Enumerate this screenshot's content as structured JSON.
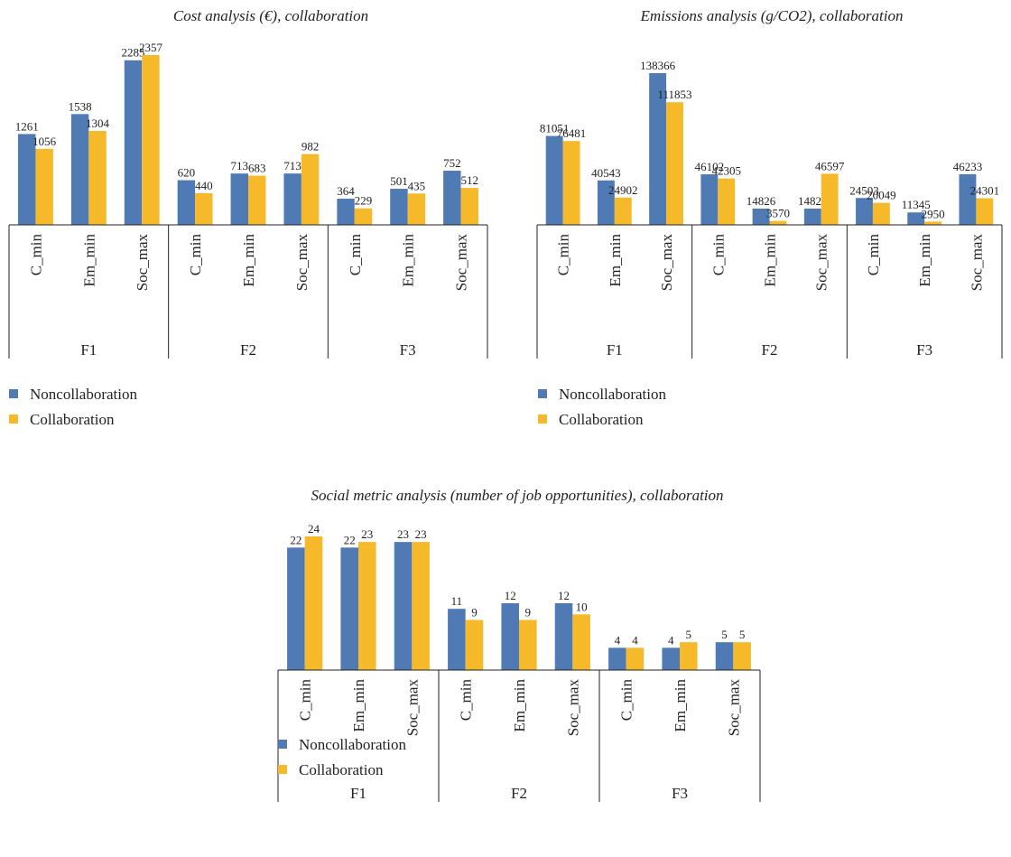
{
  "colors": {
    "noncollaboration": "#4f7ab4",
    "collaboration": "#f5b92a",
    "axis": "#222222"
  },
  "legend": {
    "noncollaboration": "Noncollaboration",
    "collaboration": "Collaboration"
  },
  "chart_data": [
    {
      "type": "bar",
      "title": "Cost analysis (€), collaboration",
      "groups": [
        "F1",
        "F2",
        "F3"
      ],
      "categories": [
        "C_min",
        "Em_min",
        "Soc_max",
        "C_min",
        "Em_min",
        "Soc_max",
        "C_min",
        "Em_min",
        "Soc_max"
      ],
      "series": [
        {
          "name": "Noncollaboration",
          "values": [
            1261,
            1538,
            2285,
            620,
            713,
            713,
            364,
            501,
            752
          ]
        },
        {
          "name": "Collaboration",
          "values": [
            1056,
            1304,
            2357,
            440,
            683,
            982,
            229,
            435,
            512
          ]
        }
      ],
      "ylim": [
        0,
        2357
      ],
      "grid": false,
      "legend_position": "bottom-left"
    },
    {
      "type": "bar",
      "title": "Emissions analysis (g/CO2), collaboration",
      "groups": [
        "F1",
        "F2",
        "F3"
      ],
      "categories": [
        "C_min",
        "Em_min",
        "Soc_max",
        "C_min",
        "Em_min",
        "Soc_max",
        "C_min",
        "Em_min",
        "Soc_max"
      ],
      "series": [
        {
          "name": "Noncollaboration",
          "values": [
            81051,
            40543,
            138366,
            46102,
            14826,
            14826,
            24503,
            11345,
            46233
          ]
        },
        {
          "name": "Collaboration",
          "values": [
            76481,
            24902,
            111853,
            42305,
            3570,
            46597,
            20049,
            2950,
            24301
          ]
        }
      ],
      "ylim": [
        0,
        138366
      ],
      "grid": false,
      "legend_position": "bottom-left"
    },
    {
      "type": "bar",
      "title": "Social metric analysis (number of job opportunities), collaboration",
      "groups": [
        "F1",
        "F2",
        "F3"
      ],
      "categories": [
        "C_min",
        "Em_min",
        "Soc_max",
        "C_min",
        "Em_min",
        "Soc_max",
        "C_min",
        "Em_min",
        "Soc_max"
      ],
      "series": [
        {
          "name": "Noncollaboration",
          "values": [
            22,
            22,
            23,
            11,
            12,
            12,
            4,
            4,
            5
          ]
        },
        {
          "name": "Collaboration",
          "values": [
            24,
            23,
            23,
            9,
            9,
            10,
            4,
            5,
            5
          ]
        }
      ],
      "ylim": [
        0,
        24
      ],
      "grid": false,
      "legend_position": "bottom-left"
    }
  ]
}
